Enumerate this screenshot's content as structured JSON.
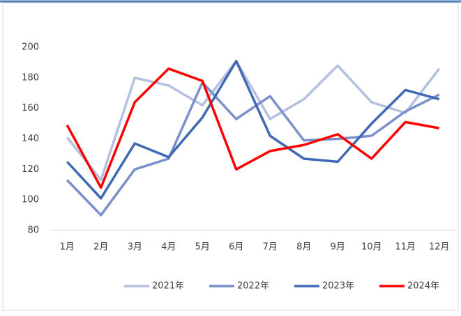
{
  "chart_data": {
    "type": "line",
    "categories": [
      "1月",
      "2月",
      "3月",
      "4月",
      "5月",
      "6月",
      "7月",
      "8月",
      "9月",
      "10月",
      "11月",
      "12月"
    ],
    "series": [
      {
        "name": "2021年",
        "color": "#b4c0e0",
        "values": [
          141,
          113,
          180,
          175,
          162,
          191,
          153,
          166,
          188,
          164,
          157,
          186
        ]
      },
      {
        "name": "2022年",
        "color": "#7a8fcc",
        "values": [
          113,
          90,
          120,
          127,
          177,
          153,
          168,
          139,
          140,
          142,
          158,
          169
        ]
      },
      {
        "name": "2023年",
        "color": "#3f68b5",
        "values": [
          125,
          101,
          137,
          128,
          154,
          191,
          142,
          127,
          125,
          150,
          172,
          166
        ]
      },
      {
        "name": "2024年",
        "color": "#ff0000",
        "values": [
          149,
          108,
          164,
          186,
          178,
          120,
          132,
          136,
          143,
          127,
          151,
          147
        ]
      }
    ],
    "ylim": [
      80,
      200
    ],
    "yticks": [
      80,
      100,
      120,
      140,
      160,
      180,
      200
    ],
    "legend": "bottom"
  }
}
